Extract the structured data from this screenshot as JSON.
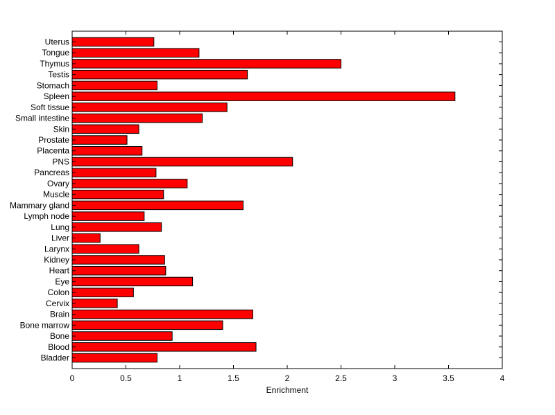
{
  "chart_data": {
    "type": "bar",
    "orientation": "horizontal",
    "title": "",
    "xlabel": "Enrichment",
    "ylabel": "",
    "xlim": [
      0,
      4
    ],
    "xticks": [
      0,
      0.5,
      1,
      1.5,
      2,
      2.5,
      3,
      3.5,
      4
    ],
    "xtick_labels": [
      "0",
      "0.5",
      "1",
      "1.5",
      "2",
      "2.5",
      "3",
      "3.5",
      "4"
    ],
    "grid": false,
    "legend": "none",
    "bar_color": "#ff0000",
    "bar_edge_color": "#000000",
    "categories": [
      "Bladder",
      "Blood",
      "Bone",
      "Bone marrow",
      "Brain",
      "Cervix",
      "Colon",
      "Eye",
      "Heart",
      "Kidney",
      "Larynx",
      "Liver",
      "Lung",
      "Lymph node",
      "Mammary gland",
      "Muscle",
      "Ovary",
      "Pancreas",
      "PNS",
      "Placenta",
      "Prostate",
      "Skin",
      "Small intestine",
      "Soft tissue",
      "Spleen",
      "Stomach",
      "Testis",
      "Thymus",
      "Tongue",
      "Uterus"
    ],
    "values": [
      0.79,
      1.71,
      0.93,
      1.4,
      1.68,
      0.42,
      0.57,
      1.12,
      0.87,
      0.86,
      0.62,
      0.26,
      0.83,
      0.67,
      1.59,
      0.85,
      1.07,
      0.78,
      2.05,
      0.65,
      0.51,
      0.62,
      1.21,
      1.44,
      3.56,
      0.79,
      1.63,
      2.5,
      1.18,
      0.76
    ]
  }
}
